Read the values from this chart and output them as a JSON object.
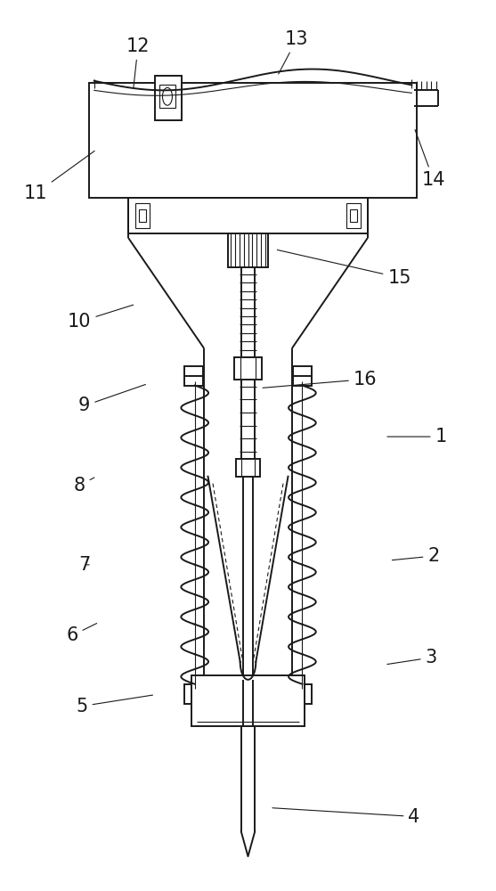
{
  "bg_color": "#ffffff",
  "line_color": "#1a1a1a",
  "lw": 1.4,
  "lw_t": 0.8,
  "lw_thick": 2.0,
  "label_fontsize": 15,
  "labels_info": [
    [
      1,
      0.895,
      0.49,
      0.78,
      0.49
    ],
    [
      2,
      0.88,
      0.625,
      0.79,
      0.63
    ],
    [
      3,
      0.875,
      0.74,
      0.78,
      0.748
    ],
    [
      4,
      0.84,
      0.92,
      0.545,
      0.91
    ],
    [
      5,
      0.16,
      0.795,
      0.31,
      0.782
    ],
    [
      6,
      0.14,
      0.715,
      0.195,
      0.7
    ],
    [
      7,
      0.165,
      0.635,
      0.175,
      0.635
    ],
    [
      8,
      0.155,
      0.545,
      0.19,
      0.535
    ],
    [
      9,
      0.165,
      0.455,
      0.295,
      0.43
    ],
    [
      10,
      0.155,
      0.36,
      0.27,
      0.34
    ],
    [
      11,
      0.065,
      0.215,
      0.19,
      0.165
    ],
    [
      12,
      0.275,
      0.048,
      0.265,
      0.098
    ],
    [
      13,
      0.6,
      0.04,
      0.56,
      0.082
    ],
    [
      14,
      0.88,
      0.2,
      0.84,
      0.14
    ],
    [
      15,
      0.81,
      0.31,
      0.555,
      0.278
    ],
    [
      16,
      0.74,
      0.425,
      0.525,
      0.435
    ]
  ]
}
